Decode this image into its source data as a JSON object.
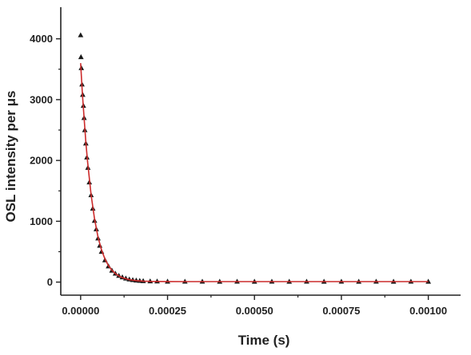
{
  "chart_data": {
    "type": "scatter",
    "title": "",
    "xlabel": "Time (s)",
    "ylabel": "OSL intensity per μs",
    "xlim": [
      -5.71e-05,
      0.0010929
    ],
    "ylim": [
      -215,
      4520
    ],
    "xticks": [
      0,
      0.00025,
      0.0005,
      0.00075,
      0.001
    ],
    "xtick_labels": [
      "0.00000",
      "0.00025",
      "0.00050",
      "0.00075",
      "0.00100"
    ],
    "yticks": [
      0,
      1000,
      2000,
      3000,
      4000
    ],
    "ytick_labels": [
      "0",
      "1000",
      "2000",
      "3000",
      "4000"
    ],
    "grid": false,
    "legend": "none",
    "series": [
      {
        "kind": "markers",
        "marker": "triangle",
        "color": "#1a1a1a",
        "x": [
          0,
          1e-06,
          2e-06,
          4e-06,
          6e-06,
          8e-06,
          1e-05,
          1.2e-05,
          1.5e-05,
          1.8e-05,
          2.1e-05,
          2.5e-05,
          3e-05,
          3.5e-05,
          4e-05,
          4.5e-05,
          5e-05,
          5.5e-05,
          6e-05,
          7e-05,
          8e-05,
          9e-05,
          0.0001,
          0.00011,
          0.00012,
          0.00013,
          0.00014,
          0.00015,
          0.00016,
          0.00017,
          0.00018,
          0.0002,
          0.00022,
          0.00025,
          0.0003,
          0.00035,
          0.0004,
          0.00045,
          0.0005,
          0.00055,
          0.0006,
          0.00065,
          0.0007,
          0.00075,
          0.0008,
          0.00085,
          0.0009,
          0.00095,
          0.001
        ],
        "y": [
          4060,
          3700,
          3520,
          3250,
          3080,
          2900,
          2700,
          2500,
          2280,
          2050,
          1880,
          1640,
          1430,
          1210,
          1010,
          870,
          720,
          600,
          500,
          360,
          260,
          190,
          140,
          105,
          80,
          60,
          45,
          35,
          28,
          22,
          18,
          14,
          12,
          10,
          9,
          9,
          8,
          9,
          8,
          9,
          8,
          9,
          8,
          9,
          8,
          9,
          8,
          9,
          8
        ]
      },
      {
        "kind": "line",
        "color": "#cc2b2b",
        "x": [
          0,
          5e-06,
          1e-05,
          1.5e-05,
          2e-05,
          3e-05,
          4e-05,
          5e-05,
          6e-05,
          7e-05,
          8e-05,
          9e-05,
          0.0001,
          0.00011,
          0.00012,
          0.00014,
          0.00016,
          0.00018,
          0.0002,
          0.00025,
          0.0003,
          0.0004,
          0.0005,
          0.0006,
          0.0007,
          0.0008,
          0.0009,
          0.001
        ],
        "y": [
          3600,
          3100,
          2700,
          2300,
          1980,
          1440,
          1040,
          740,
          530,
          380,
          270,
          195,
          140,
          100,
          72,
          40,
          24,
          16,
          12,
          9,
          8,
          8,
          8,
          8,
          8,
          8,
          8,
          8
        ]
      }
    ]
  }
}
